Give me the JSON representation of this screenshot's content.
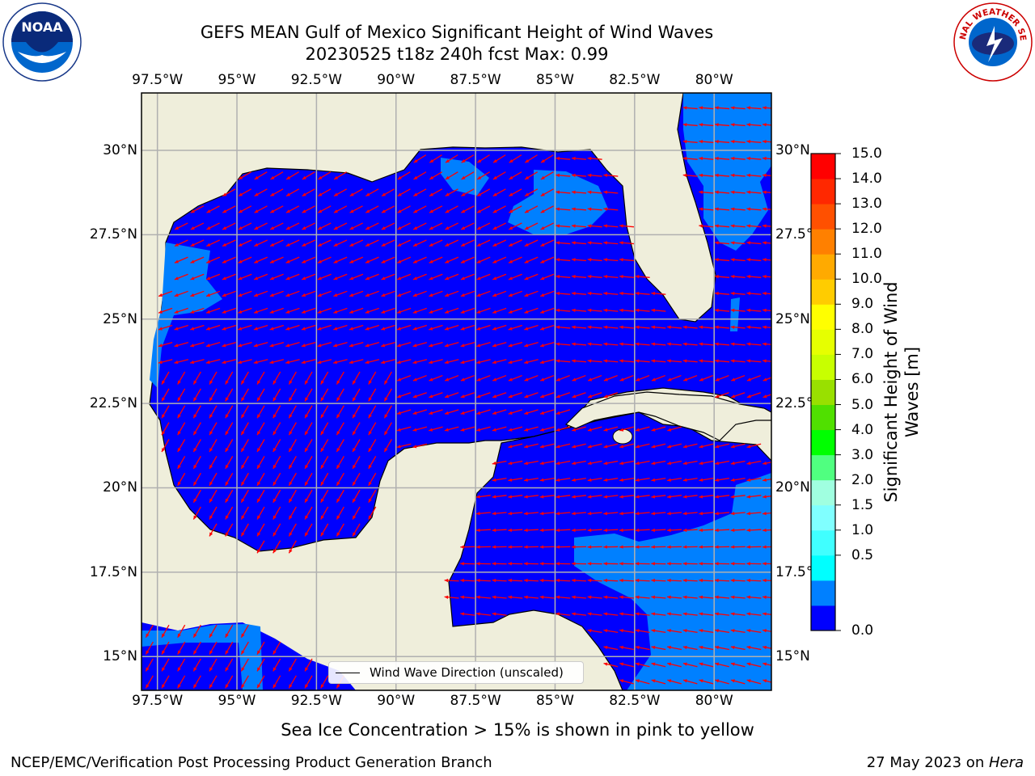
{
  "title": {
    "line1": "GEFS MEAN Gulf of Mexico Significant Height of Wind Waves",
    "line2": "20230525 t18z 240h fcst   Max: 0.99"
  },
  "logos": {
    "left": "noaa-logo",
    "left_text": "NOAA",
    "right": "nws-logo",
    "right_text": "NATIONAL WEATHER SERVICE"
  },
  "map": {
    "lon_ticks": [
      "97.5°W",
      "95°W",
      "92.5°W",
      "90°W",
      "87.5°W",
      "85°W",
      "82.5°W",
      "80°W"
    ],
    "lat_ticks_left": [
      "30°N",
      "27.5°N",
      "25°N",
      "22.5°N",
      "20°N",
      "17.5°N",
      "15°N"
    ],
    "lat_ticks_right": [
      "30°N",
      "27.5°",
      "25°N",
      "22.5°",
      "20°N",
      "17.5°",
      "15°N"
    ],
    "lon_values": [
      -97.5,
      -95,
      -92.5,
      -90,
      -87.5,
      -85,
      -82.5,
      -80
    ],
    "lat_values": [
      30,
      27.5,
      25,
      22.5,
      20,
      17.5,
      15
    ],
    "extent": {
      "lon_min": -98,
      "lon_max": -78.2,
      "lat_min": 14,
      "lat_max": 31.7
    },
    "colors": {
      "land": "#efeedb",
      "wave_0_05": "#0000fe",
      "wave_05_1": "#0080ff",
      "arrow": "#ff0000",
      "grid": "#b0b0b0"
    },
    "legend_label": "Wind Wave Direction (unscaled)"
  },
  "colorbar": {
    "label": "Significant Height of Wind Waves [m]",
    "ticks": [
      "15.0",
      "14.0",
      "13.0",
      "12.0",
      "11.0",
      "10.0",
      "9.0",
      "8.0",
      "7.0",
      "6.0",
      "5.0",
      "4.0",
      "3.0",
      "2.0",
      "1.5",
      "1.0",
      "0.5",
      "0.0"
    ],
    "colors": [
      "#0000fe",
      "#0080ff",
      "#00ffff",
      "#40ffff",
      "#80ffff",
      "#a0ffe0",
      "#50ff80",
      "#00ff00",
      "#50e000",
      "#99e000",
      "#c8ff00",
      "#e6ff00",
      "#ffff00",
      "#ffcc00",
      "#ffaa00",
      "#ff8000",
      "#ff5000",
      "#ff2800",
      "#ff0000"
    ]
  },
  "footer": {
    "sea_ice_note": "Sea Ice Concentration > 15% is shown in pink to yellow",
    "branch": "NCEP/EMC/Verification Post Processing Product Generation Branch",
    "date_text": "27 May 2023 on ",
    "machine": "Hera"
  }
}
